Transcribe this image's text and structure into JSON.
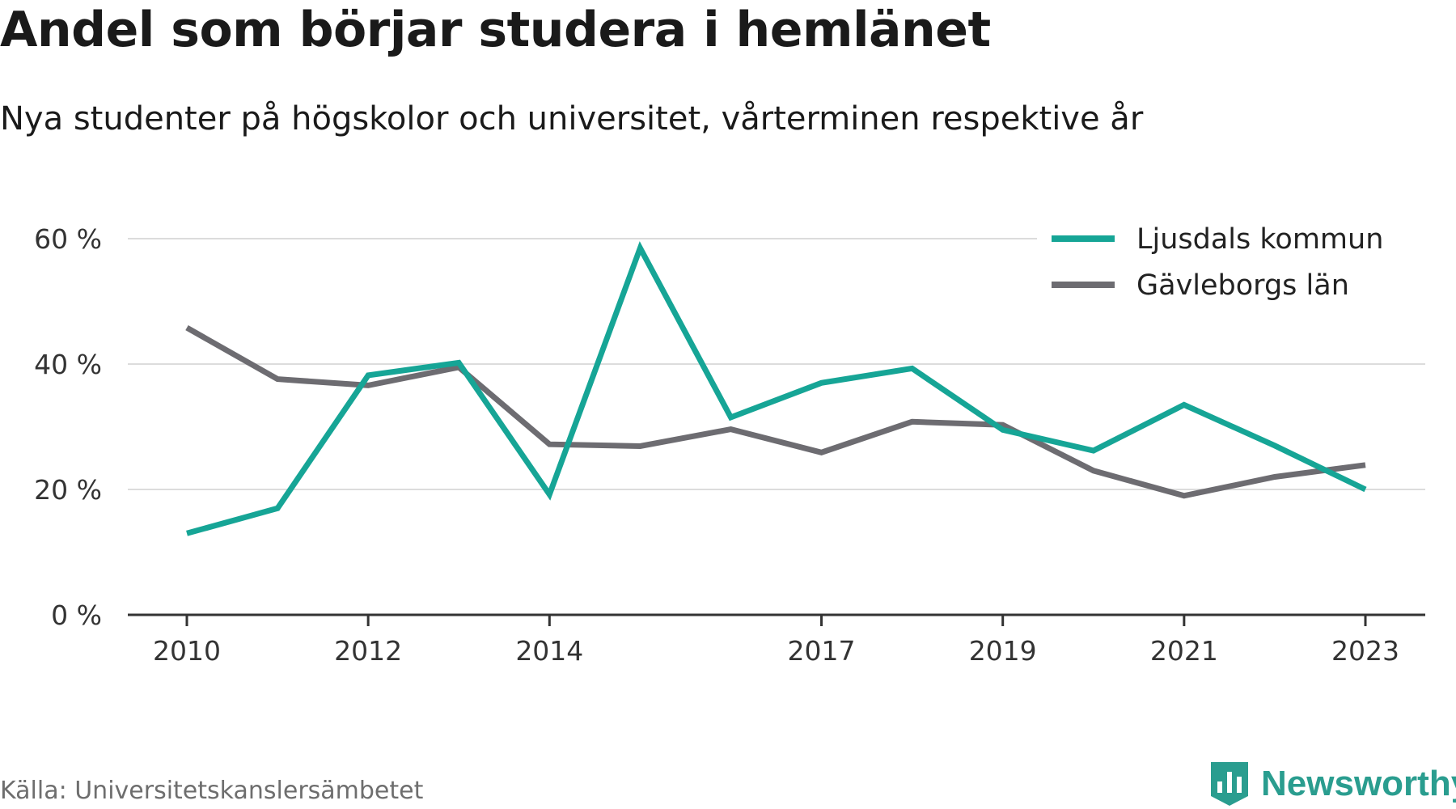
{
  "title": "Andel som börjar studera i hemlänet",
  "subtitle": "Nya studenter på högskolor och universitet, vårterminen respektive år",
  "source": "Källa: Universitetskanslersämbetet",
  "brand": {
    "name": "Newsworthy",
    "icon": "newsworthy-logo-icon",
    "color": "#2a9d8f"
  },
  "chart_data": {
    "type": "line",
    "x": [
      2010,
      2011,
      2012,
      2013,
      2014,
      2015,
      2016,
      2017,
      2018,
      2019,
      2020,
      2021,
      2022,
      2023
    ],
    "x_tick_labels": [
      "2010",
      "2012",
      "2014",
      "2017",
      "2019",
      "2021",
      "2023"
    ],
    "y_tick_labels": [
      "0 %",
      "20 %",
      "40 %",
      "60 %"
    ],
    "ylim": [
      0,
      60
    ],
    "y_ticks": [
      0,
      20,
      40,
      60
    ],
    "grid": true,
    "legend_position": "top-right",
    "series": [
      {
        "name": "Ljusdals kommun",
        "color": "#16a596",
        "values": [
          13,
          17,
          38.2,
          40.2,
          19.2,
          58.5,
          31.5,
          37,
          39.3,
          29.5,
          26.2,
          33.5,
          27,
          20
        ]
      },
      {
        "name": "Gävleborgs län",
        "color": "#6d6c71",
        "values": [
          45.8,
          37.6,
          36.6,
          39.5,
          27.2,
          26.9,
          29.6,
          25.9,
          30.8,
          30.3,
          23,
          19,
          22,
          23.9
        ]
      }
    ]
  }
}
